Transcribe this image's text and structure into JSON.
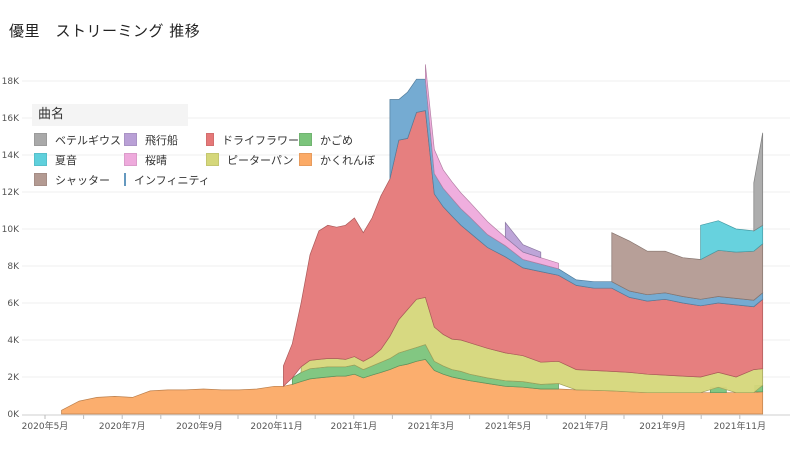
{
  "title": "優里　ストリーミング 推移",
  "legend": {
    "title": "曲名",
    "items": [
      {
        "name": "ベテルギウス",
        "color": "#a9a9a9"
      },
      {
        "name": "飛行船",
        "color": "#b9a0d6"
      },
      {
        "name": "ドライフラワー",
        "color": "#e57878"
      },
      {
        "name": "かごめ",
        "color": "#7bc47b"
      },
      {
        "name": "夏音",
        "color": "#5fd0dc"
      },
      {
        "name": "桜晴",
        "color": "#eeaadc"
      },
      {
        "name": "ピーターパン",
        "color": "#d5d77a"
      },
      {
        "name": "かくれんぼ",
        "color": "#fbaa66"
      },
      {
        "name": "シャッター",
        "color": "#b39a92"
      },
      {
        "name": "インフィニティ",
        "color": "#6ea7d0"
      }
    ]
  },
  "chart_data": {
    "type": "area",
    "stacked": true,
    "title": "優里　ストリーミング 推移",
    "xlabel": "",
    "ylabel": "",
    "ylim": [
      0,
      18000
    ],
    "grid": true,
    "legend_position": "top-left",
    "y_ticks": [
      "0K",
      "2K",
      "4K",
      "6K",
      "8K",
      "10K",
      "12K",
      "14K",
      "16K",
      "18K"
    ],
    "x_ticks": [
      "2020年5月",
      "2020年7月",
      "2020年9月",
      "2020年11月",
      "2021年1月",
      "2021年3月",
      "2021年5月",
      "2021年7月",
      "2021年9月",
      "2021年11月"
    ],
    "x": [
      "2020-05-14",
      "2020-05-28",
      "2020-06-11",
      "2020-06-25",
      "2020-07-09",
      "2020-07-23",
      "2020-08-06",
      "2020-08-20",
      "2020-09-03",
      "2020-09-17",
      "2020-10-01",
      "2020-10-15",
      "2020-10-29",
      "2020-11-05",
      "2020-11-12",
      "2020-11-19",
      "2020-11-26",
      "2020-12-03",
      "2020-12-10",
      "2020-12-17",
      "2020-12-24",
      "2020-12-31",
      "2021-01-07",
      "2021-01-14",
      "2021-01-21",
      "2021-01-28",
      "2021-02-04",
      "2021-02-11",
      "2021-02-18",
      "2021-02-25",
      "2021-03-04",
      "2021-03-11",
      "2021-03-18",
      "2021-03-25",
      "2021-04-01",
      "2021-04-15",
      "2021-04-29",
      "2021-05-13",
      "2021-05-27",
      "2021-06-10",
      "2021-06-24",
      "2021-07-08",
      "2021-07-22",
      "2021-08-05",
      "2021-08-19",
      "2021-09-02",
      "2021-09-16",
      "2021-09-30",
      "2021-10-14",
      "2021-10-28",
      "2021-11-11",
      "2021-11-18"
    ],
    "series": [
      {
        "name": "かくれんぼ",
        "color": "#fbaa66",
        "values": [
          200,
          700,
          900,
          950,
          900,
          1250,
          1300,
          1300,
          1350,
          1300,
          1300,
          1350,
          1500,
          1500,
          1600,
          1750,
          1900,
          1950,
          2000,
          2050,
          2050,
          2150,
          1950,
          2100,
          2250,
          2400,
          2600,
          2700,
          2850,
          2950,
          2350,
          2150,
          2000,
          1900,
          1800,
          1650,
          1500,
          1450,
          1350,
          1350,
          1300,
          1280,
          1250,
          1200,
          1150,
          1150,
          1150,
          1150,
          1150,
          1150,
          1150,
          1200
        ]
      },
      {
        "name": "かごめ",
        "color": "#7bc47b",
        "values": [
          null,
          null,
          null,
          null,
          null,
          null,
          null,
          null,
          null,
          null,
          null,
          null,
          null,
          null,
          350,
          500,
          550,
          550,
          550,
          500,
          500,
          500,
          450,
          500,
          550,
          600,
          700,
          750,
          750,
          800,
          500,
          450,
          400,
          400,
          350,
          300,
          300,
          300,
          250,
          300,
          null,
          null,
          null,
          null,
          null,
          null,
          null,
          null,
          300,
          null,
          null,
          350
        ]
      },
      {
        "name": "ピーターパン",
        "color": "#d5d77a",
        "values": [
          null,
          null,
          null,
          null,
          null,
          null,
          null,
          null,
          null,
          null,
          null,
          null,
          null,
          null,
          null,
          300,
          450,
          450,
          450,
          450,
          400,
          450,
          450,
          500,
          700,
          1200,
          1800,
          2200,
          2600,
          2550,
          1850,
          1700,
          1650,
          1700,
          1700,
          1600,
          1500,
          1400,
          1200,
          1200,
          1100,
          1070,
          1050,
          1050,
          1000,
          950,
          900,
          850,
          800,
          850,
          1250,
          900
        ]
      },
      {
        "name": "ドライフラワー",
        "color": "#e57878",
        "values": [
          null,
          null,
          null,
          null,
          null,
          null,
          null,
          null,
          null,
          null,
          null,
          null,
          null,
          1100,
          1850,
          3450,
          5700,
          6950,
          7200,
          7100,
          7250,
          7500,
          6950,
          7500,
          8300,
          8500,
          9700,
          9250,
          10100,
          10100,
          7200,
          6900,
          6650,
          6200,
          5950,
          5450,
          5200,
          4750,
          4900,
          4650,
          4550,
          4450,
          4500,
          4050,
          3950,
          4100,
          3950,
          3850,
          3750,
          3900,
          3400,
          3750
        ]
      },
      {
        "name": "インフィニティ",
        "color": "#6ea7d0",
        "values": [
          null,
          null,
          null,
          null,
          null,
          null,
          null,
          null,
          null,
          null,
          null,
          null,
          null,
          null,
          null,
          null,
          null,
          null,
          null,
          null,
          null,
          null,
          null,
          null,
          null,
          4300,
          2200,
          2500,
          1800,
          1700,
          1100,
          1000,
          950,
          900,
          850,
          700,
          600,
          450,
          400,
          350,
          300,
          350,
          350,
          350,
          350,
          350,
          350,
          350,
          350,
          350,
          350,
          350
        ]
      },
      {
        "name": "桜晴",
        "color": "#eeaadc",
        "values": [
          null,
          null,
          null,
          null,
          null,
          null,
          null,
          null,
          null,
          null,
          null,
          null,
          null,
          null,
          null,
          null,
          null,
          null,
          null,
          null,
          null,
          null,
          null,
          null,
          null,
          null,
          null,
          null,
          null,
          800,
          1300,
          1000,
          900,
          850,
          800,
          700,
          450,
          400,
          350,
          300,
          null,
          null,
          null,
          null,
          null,
          null,
          null,
          null,
          null,
          null,
          null,
          null
        ]
      },
      {
        "name": "飛行船",
        "color": "#b9a0d6",
        "values": [
          null,
          null,
          null,
          null,
          null,
          null,
          null,
          null,
          null,
          null,
          null,
          null,
          null,
          null,
          null,
          null,
          null,
          null,
          null,
          null,
          null,
          null,
          null,
          null,
          null,
          null,
          null,
          null,
          null,
          null,
          null,
          null,
          null,
          null,
          null,
          null,
          800,
          400,
          300,
          null,
          null,
          null,
          null,
          null,
          null,
          null,
          null,
          null,
          null,
          null,
          null,
          null
        ]
      },
      {
        "name": "シャッター",
        "color": "#b39a92",
        "values": [
          null,
          null,
          null,
          null,
          null,
          null,
          null,
          null,
          null,
          null,
          null,
          null,
          null,
          null,
          null,
          null,
          null,
          null,
          null,
          null,
          null,
          null,
          null,
          null,
          null,
          null,
          null,
          null,
          null,
          null,
          null,
          null,
          null,
          null,
          null,
          null,
          null,
          null,
          null,
          null,
          null,
          null,
          2650,
          2700,
          2350,
          2250,
          2100,
          2150,
          2500,
          2500,
          2650,
          2650
        ]
      },
      {
        "name": "夏音",
        "color": "#5fd0dc",
        "values": [
          null,
          null,
          null,
          null,
          null,
          null,
          null,
          null,
          null,
          null,
          null,
          null,
          null,
          null,
          null,
          null,
          null,
          null,
          null,
          null,
          null,
          null,
          null,
          null,
          null,
          null,
          null,
          null,
          null,
          null,
          null,
          null,
          null,
          null,
          null,
          null,
          null,
          null,
          null,
          null,
          null,
          null,
          null,
          null,
          null,
          null,
          null,
          1850,
          1600,
          1250,
          1100,
          1000
        ]
      },
      {
        "name": "ベテルギウス",
        "color": "#a9a9a9",
        "values": [
          null,
          null,
          null,
          null,
          null,
          null,
          null,
          null,
          null,
          null,
          null,
          null,
          null,
          null,
          null,
          null,
          null,
          null,
          null,
          null,
          null,
          null,
          null,
          null,
          null,
          null,
          null,
          null,
          null,
          null,
          null,
          null,
          null,
          null,
          null,
          null,
          null,
          null,
          null,
          null,
          null,
          null,
          null,
          null,
          null,
          null,
          null,
          null,
          null,
          null,
          2600,
          5000
        ]
      }
    ]
  }
}
